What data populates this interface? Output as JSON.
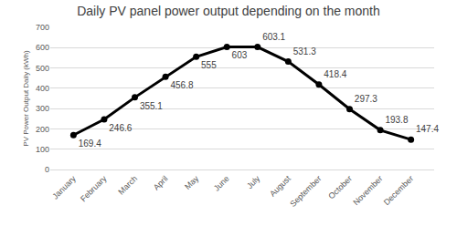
{
  "chart_data": {
    "type": "line",
    "title": "Daily PV panel power output depending on the month",
    "y_label": "PV Power Output Daily (kWh)",
    "categories": [
      "January",
      "February",
      "March",
      "April",
      "May",
      "June",
      "July",
      "August",
      "September",
      "October",
      "November",
      "December"
    ],
    "values": [
      169.4,
      246.6,
      355.1,
      456.8,
      555,
      603,
      603.1,
      531.3,
      418.4,
      297.3,
      193.8,
      147.4
    ],
    "color": "#000000",
    "marker": "circle",
    "line_style": "solid",
    "ylim": [
      0,
      700
    ],
    "yticks": [
      0,
      100,
      200,
      300,
      400,
      500,
      600,
      700
    ],
    "grid": true,
    "data_labels": true
  }
}
